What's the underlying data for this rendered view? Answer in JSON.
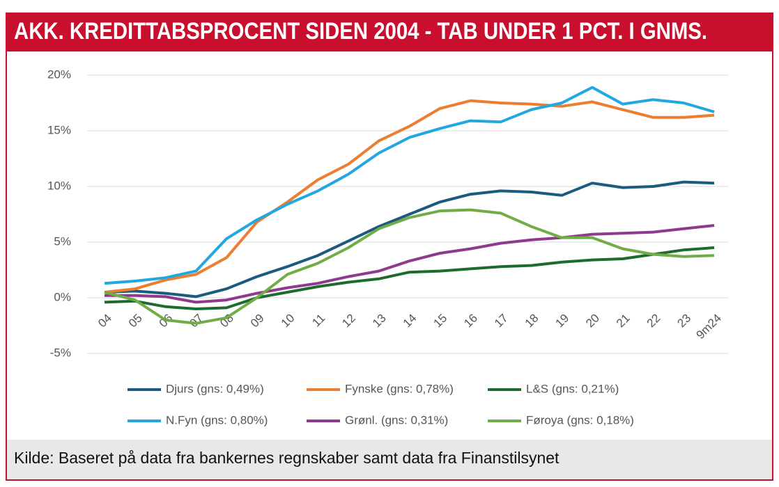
{
  "chart_data": {
    "type": "line",
    "title": "AKK. KREDITTABSPROCENT SIDEN 2004 - TAB UNDER 1 PCT. I GNMS.",
    "source": "Kilde: Baseret på data fra bankernes regnskaber samt data fra Finanstilsynet",
    "categories": [
      "04",
      "05",
      "06",
      "07",
      "08",
      "09",
      "10",
      "11",
      "12",
      "13",
      "14",
      "15",
      "16",
      "17",
      "18",
      "19",
      "20",
      "21",
      "22",
      "23",
      "9m24"
    ],
    "ylim": [
      -5,
      20
    ],
    "yticks": [
      {
        "value": -5,
        "label": "-5%"
      },
      {
        "value": 0,
        "label": "0%"
      },
      {
        "value": 5,
        "label": "5%"
      },
      {
        "value": 10,
        "label": "10%"
      },
      {
        "value": 15,
        "label": "15%"
      },
      {
        "value": 20,
        "label": "20%"
      }
    ],
    "grid": true,
    "series": [
      {
        "name": "Djurs (gns: 0,49%)",
        "color": "#1c5a80",
        "values": [
          0.5,
          0.6,
          0.4,
          0.1,
          0.8,
          1.9,
          2.8,
          3.8,
          5.1,
          6.4,
          7.5,
          8.6,
          9.3,
          9.6,
          9.5,
          9.2,
          10.3,
          9.9,
          10.0,
          10.4,
          10.3
        ]
      },
      {
        "name": "Fynske (gns: 0,78%)",
        "color": "#ed7d31",
        "values": [
          0.5,
          0.8,
          1.6,
          2.1,
          3.6,
          6.8,
          8.6,
          10.6,
          12.0,
          14.1,
          15.4,
          17.0,
          17.7,
          17.5,
          17.4,
          17.2,
          17.6,
          16.9,
          16.2,
          16.2,
          16.4
        ]
      },
      {
        "name": "L&S (gns: 0,21%)",
        "color": "#1e6b2e",
        "values": [
          -0.4,
          -0.3,
          -0.8,
          -1.0,
          -0.9,
          0.0,
          0.5,
          1.0,
          1.4,
          1.7,
          2.3,
          2.4,
          2.6,
          2.8,
          2.9,
          3.2,
          3.4,
          3.5,
          3.9,
          4.3,
          4.5
        ]
      },
      {
        "name": "N.Fyn (gns: 0,80%)",
        "color": "#22a7e0",
        "values": [
          1.3,
          1.5,
          1.8,
          2.4,
          5.3,
          7.0,
          8.4,
          9.6,
          11.1,
          13.0,
          14.4,
          15.2,
          15.9,
          15.8,
          16.9,
          17.5,
          18.9,
          17.4,
          17.8,
          17.5,
          16.7
        ]
      },
      {
        "name": "Grønl. (gns: 0,31%)",
        "color": "#8e3a8e",
        "values": [
          0.2,
          0.2,
          0.1,
          -0.4,
          -0.2,
          0.4,
          0.9,
          1.3,
          1.9,
          2.4,
          3.3,
          4.0,
          4.4,
          4.9,
          5.2,
          5.4,
          5.7,
          5.8,
          5.9,
          6.2,
          6.5
        ]
      },
      {
        "name": "Føroya (gns: 0,18%)",
        "color": "#70ad47",
        "values": [
          0.5,
          -0.2,
          -2.0,
          -2.3,
          -1.8,
          0.0,
          2.1,
          3.1,
          4.5,
          6.2,
          7.2,
          7.8,
          7.9,
          7.6,
          6.4,
          5.4,
          5.4,
          4.4,
          3.9,
          3.7,
          3.8
        ]
      }
    ]
  }
}
